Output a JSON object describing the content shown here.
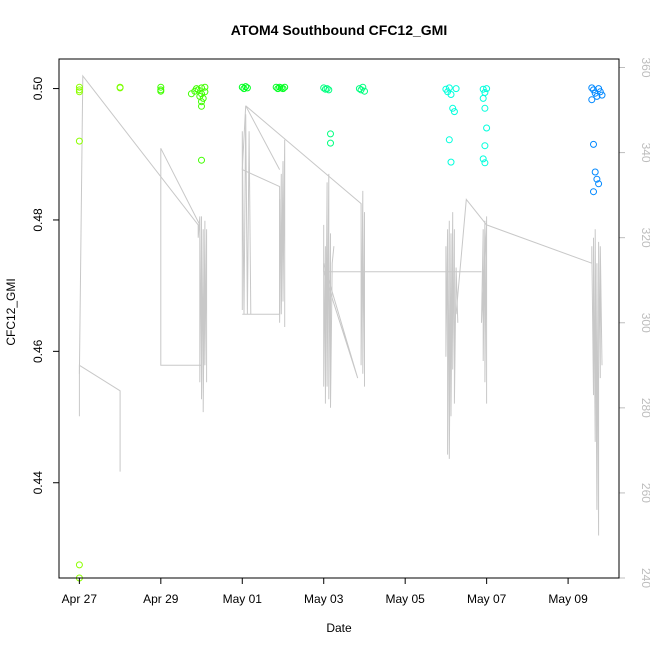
{
  "chart_data": {
    "type": "scatter",
    "title": "ATOM4 Southbound CFC12_GMI",
    "xlabel": "Date",
    "ylabel": "CFC12_GMI",
    "x_ticks": [
      "Apr 27",
      "Apr 29",
      "May 01",
      "May 03",
      "May 05",
      "May 07",
      "May 09"
    ],
    "y_ticks": [
      "0.44",
      "0.46",
      "0.48",
      "0.50"
    ],
    "y2_ticks": [
      "240",
      "260",
      "280",
      "300",
      "320",
      "340",
      "360"
    ],
    "xlim": [
      "2018-04-26 12:00",
      "2018-05-10 06:00"
    ],
    "ylim": [
      0.4255,
      0.5045
    ],
    "y2lim": [
      240,
      362
    ],
    "grid": false,
    "colors": {
      "gray_series": "#c8c8c8",
      "apr27": "#8cff00",
      "apr28": "#7cff00",
      "apr29_30": "#40ff00",
      "may01_02": "#00ff20",
      "may03_04": "#00ff80",
      "may06_07": "#00ffdd",
      "may09": "#0088ff"
    },
    "series": [
      {
        "color_key": "apr27",
        "points": [
          [
            "2018-04-27 00:00",
            0.5002
          ],
          [
            "2018-04-27 00:00",
            0.4998
          ],
          [
            "2018-04-27 00:00",
            0.4995
          ],
          [
            "2018-04-27 00:00",
            0.492
          ],
          [
            "2018-04-27 00:00",
            0.4275
          ],
          [
            "2018-04-27 00:00",
            0.4255
          ]
        ]
      },
      {
        "color_key": "apr28",
        "points": [
          [
            "2018-04-28 00:00",
            0.5002
          ],
          [
            "2018-04-28 00:00",
            0.5001
          ]
        ]
      },
      {
        "color_key": "apr29_30",
        "points": [
          [
            "2018-04-29 00:00",
            0.5002
          ],
          [
            "2018-04-29 00:00",
            0.4996
          ],
          [
            "2018-04-29 00:00",
            0.4998
          ],
          [
            "2018-04-29 18:00",
            0.4992
          ],
          [
            "2018-04-29 20:00",
            0.4996
          ],
          [
            "2018-04-29 21:00",
            0.5
          ],
          [
            "2018-04-29 22:00",
            0.4998
          ],
          [
            "2018-04-29 23:00",
            0.4988
          ],
          [
            "2018-04-30 00:00",
            0.4992
          ],
          [
            "2018-04-30 00:00",
            0.5001
          ],
          [
            "2018-04-30 00:00",
            0.498
          ],
          [
            "2018-04-30 00:00",
            0.4973
          ],
          [
            "2018-04-30 01:00",
            0.4985
          ],
          [
            "2018-04-30 02:00",
            0.4995
          ],
          [
            "2018-04-30 02:00",
            0.5002
          ],
          [
            "2018-04-30 00:00",
            0.4891
          ]
        ]
      },
      {
        "color_key": "may01_02",
        "points": [
          [
            "2018-05-01 00:00",
            0.5002
          ],
          [
            "2018-05-01 01:00",
            0.5
          ],
          [
            "2018-05-01 02:00",
            0.5003
          ],
          [
            "2018-05-01 03:00",
            0.5001
          ],
          [
            "2018-05-01 20:00",
            0.5002
          ],
          [
            "2018-05-01 21:00",
            0.5
          ],
          [
            "2018-05-01 22:00",
            0.5002
          ],
          [
            "2018-05-01 23:00",
            0.5001
          ],
          [
            "2018-05-02 00:00",
            0.5
          ],
          [
            "2018-05-02 01:00",
            0.5002
          ]
        ]
      },
      {
        "color_key": "may03_04",
        "points": [
          [
            "2018-05-03 00:00",
            0.5001
          ],
          [
            "2018-05-03 01:00",
            0.4999
          ],
          [
            "2018-05-03 02:00",
            0.5
          ],
          [
            "2018-05-03 03:00",
            0.4998
          ],
          [
            "2018-05-03 04:00",
            0.4931
          ],
          [
            "2018-05-03 04:00",
            0.4917
          ],
          [
            "2018-05-03 21:00",
            0.5
          ],
          [
            "2018-05-03 22:00",
            0.4998
          ],
          [
            "2018-05-03 23:00",
            0.5002
          ],
          [
            "2018-05-04 00:00",
            0.4996
          ]
        ]
      },
      {
        "color_key": "may06_07",
        "points": [
          [
            "2018-05-06 00:00",
            0.4999
          ],
          [
            "2018-05-06 01:00",
            0.4995
          ],
          [
            "2018-05-06 02:00",
            0.5001
          ],
          [
            "2018-05-06 03:00",
            0.4991
          ],
          [
            "2018-05-06 04:00",
            0.497
          ],
          [
            "2018-05-06 05:00",
            0.4965
          ],
          [
            "2018-05-06 02:00",
            0.4922
          ],
          [
            "2018-05-06 03:00",
            0.4888
          ],
          [
            "2018-05-06 06:00",
            0.5
          ],
          [
            "2018-05-06 22:00",
            0.4999
          ],
          [
            "2018-05-06 23:00",
            0.4994
          ],
          [
            "2018-05-07 00:00",
            0.5
          ],
          [
            "2018-05-06 22:00",
            0.4985
          ],
          [
            "2018-05-06 23:00",
            0.497
          ],
          [
            "2018-05-07 00:00",
            0.494
          ],
          [
            "2018-05-06 23:00",
            0.4913
          ],
          [
            "2018-05-06 22:00",
            0.4893
          ],
          [
            "2018-05-06 23:00",
            0.4887
          ]
        ]
      },
      {
        "color_key": "may09",
        "points": [
          [
            "2018-05-09 14:00",
            0.5001
          ],
          [
            "2018-05-09 15:00",
            0.4998
          ],
          [
            "2018-05-09 16:00",
            0.4993
          ],
          [
            "2018-05-09 17:00",
            0.4988
          ],
          [
            "2018-05-09 18:00",
            0.5
          ],
          [
            "2018-05-09 19:00",
            0.4995
          ],
          [
            "2018-05-09 20:00",
            0.499
          ],
          [
            "2018-05-09 14:00",
            0.4983
          ],
          [
            "2018-05-09 15:00",
            0.4915
          ],
          [
            "2018-05-09 16:00",
            0.4873
          ],
          [
            "2018-05-09 17:00",
            0.4862
          ],
          [
            "2018-05-09 18:00",
            0.4855
          ],
          [
            "2018-05-09 15:00",
            0.4843
          ]
        ]
      }
    ],
    "secondary_series": {
      "axis": "right",
      "color_key": "gray_series",
      "segments": [
        [
          [
            "2018-04-27 00:00",
            289
          ],
          [
            "2018-04-27 00:00",
            278
          ],
          [
            "2018-04-27 00:00",
            290
          ],
          [
            "2018-04-28 00:00",
            284
          ],
          [
            "2018-04-28 00:00",
            265
          ]
        ],
        [
          [
            "2018-04-27 00:00",
            288
          ],
          [
            "2018-04-27 02:00",
            358
          ],
          [
            "2018-04-29 22:00",
            323
          ],
          [
            "2018-04-29 22:00",
            320
          ],
          [
            "2018-04-29 23:00",
            325
          ],
          [
            "2018-04-29 23:00",
            286
          ],
          [
            "2018-04-30 00:00",
            325
          ],
          [
            "2018-04-30 00:00",
            282
          ],
          [
            "2018-04-30 01:00",
            322
          ],
          [
            "2018-04-30 01:00",
            279
          ],
          [
            "2018-04-30 02:00",
            324
          ],
          [
            "2018-04-30 02:00",
            290
          ],
          [
            "2018-04-30 03:00",
            322
          ],
          [
            "2018-04-30 03:00",
            286
          ]
        ],
        [
          [
            "2018-04-30 00:00",
            290
          ],
          [
            "2018-04-29 00:00",
            290
          ],
          [
            "2018-04-29 00:00",
            341
          ],
          [
            "2018-04-29 23:00",
            323
          ]
        ],
        [
          [
            "2018-05-01 00:00",
            303
          ],
          [
            "2018-05-01 00:00",
            345
          ],
          [
            "2018-05-01 01:00",
            302
          ],
          [
            "2018-05-01 02:00",
            349
          ],
          [
            "2018-05-01 03:00",
            302
          ],
          [
            "2018-05-01 04:00",
            345
          ],
          [
            "2018-05-01 05:00",
            302
          ]
        ],
        [
          [
            "2018-05-01 00:00",
            302
          ],
          [
            "2018-05-01 22:00",
            302
          ],
          [
            "2018-05-01 22:00",
            332
          ],
          [
            "2018-05-01 00:00",
            336
          ],
          [
            "2018-05-01 02:00",
            351
          ]
        ],
        [
          [
            "2018-05-01 22:00",
            329
          ],
          [
            "2018-05-01 22:00",
            300
          ],
          [
            "2018-05-01 23:00",
            335
          ],
          [
            "2018-05-01 23:00",
            302
          ],
          [
            "2018-05-02 00:00",
            338
          ],
          [
            "2018-05-02 00:00",
            305
          ],
          [
            "2018-05-02 01:00",
            343
          ],
          [
            "2018-05-02 01:00",
            299
          ]
        ],
        [
          [
            "2018-05-01 22:00",
            336
          ],
          [
            "2018-05-01 02:00",
            351
          ],
          [
            "2018-05-03 22:00",
            328
          ],
          [
            "2018-05-03 22:00",
            290
          ],
          [
            "2018-05-03 23:00",
            331
          ],
          [
            "2018-05-03 23:00",
            288
          ],
          [
            "2018-05-04 00:00",
            326
          ],
          [
            "2018-05-04 00:00",
            285
          ]
        ],
        [
          [
            "2018-05-03 00:00",
            323
          ],
          [
            "2018-05-03 00:00",
            285
          ],
          [
            "2018-05-03 01:00",
            318
          ],
          [
            "2018-05-03 01:00",
            281
          ],
          [
            "2018-05-03 02:00",
            333
          ],
          [
            "2018-05-03 02:00",
            285
          ],
          [
            "2018-05-03 03:00",
            335
          ],
          [
            "2018-05-03 03:00",
            282
          ],
          [
            "2018-05-03 04:00",
            321
          ],
          [
            "2018-05-03 04:00",
            280
          ],
          [
            "2018-05-03 05:00",
            314
          ],
          [
            "2018-05-03 06:00",
            318
          ]
        ],
        [
          [
            "2018-05-03 00:00",
            312
          ],
          [
            "2018-05-03 00:00",
            314
          ],
          [
            "2018-05-03 20:00",
            287
          ],
          [
            "2018-05-03 00:00",
            312
          ],
          [
            "2018-05-06 21:00",
            312
          ]
        ],
        [
          [
            "2018-05-06 00:00",
            318
          ],
          [
            "2018-05-06 00:00",
            292
          ],
          [
            "2018-05-06 01:00",
            322
          ],
          [
            "2018-05-06 01:00",
            269
          ],
          [
            "2018-05-06 02:00",
            324
          ],
          [
            "2018-05-06 02:00",
            268
          ],
          [
            "2018-05-06 03:00",
            321
          ],
          [
            "2018-05-06 03:00",
            278
          ],
          [
            "2018-05-06 04:00",
            326
          ],
          [
            "2018-05-06 04:00",
            289
          ],
          [
            "2018-05-06 05:00",
            322
          ],
          [
            "2018-05-06 05:00",
            281
          ],
          [
            "2018-05-06 06:00",
            313
          ],
          [
            "2018-05-06 07:00",
            300
          ]
        ],
        [
          [
            "2018-05-06 06:00",
            302
          ],
          [
            "2018-05-06 12:00",
            329
          ],
          [
            "2018-05-07 00:00",
            323
          ],
          [
            "2018-05-06 21:00",
            300
          ],
          [
            "2018-05-06 22:00",
            322
          ],
          [
            "2018-05-06 22:00",
            291
          ],
          [
            "2018-05-06 23:00",
            324
          ],
          [
            "2018-05-06 23:00",
            286
          ],
          [
            "2018-05-07 00:00",
            325
          ],
          [
            "2018-05-07 00:00",
            281
          ]
        ],
        [
          [
            "2018-05-07 00:00",
            323
          ],
          [
            "2018-05-09 14:00",
            314
          ],
          [
            "2018-05-09 14:00",
            318
          ],
          [
            "2018-05-09 15:00",
            283
          ],
          [
            "2018-05-09 15:00",
            320
          ],
          [
            "2018-05-09 16:00",
            272
          ],
          [
            "2018-05-09 16:00",
            322
          ],
          [
            "2018-05-09 17:00",
            256
          ],
          [
            "2018-05-09 17:00",
            314
          ],
          [
            "2018-05-09 18:00",
            250
          ],
          [
            "2018-05-09 18:00",
            319
          ],
          [
            "2018-05-09 19:00",
            287
          ],
          [
            "2018-05-09 19:00",
            318
          ],
          [
            "2018-05-09 20:00",
            290
          ]
        ]
      ]
    }
  }
}
